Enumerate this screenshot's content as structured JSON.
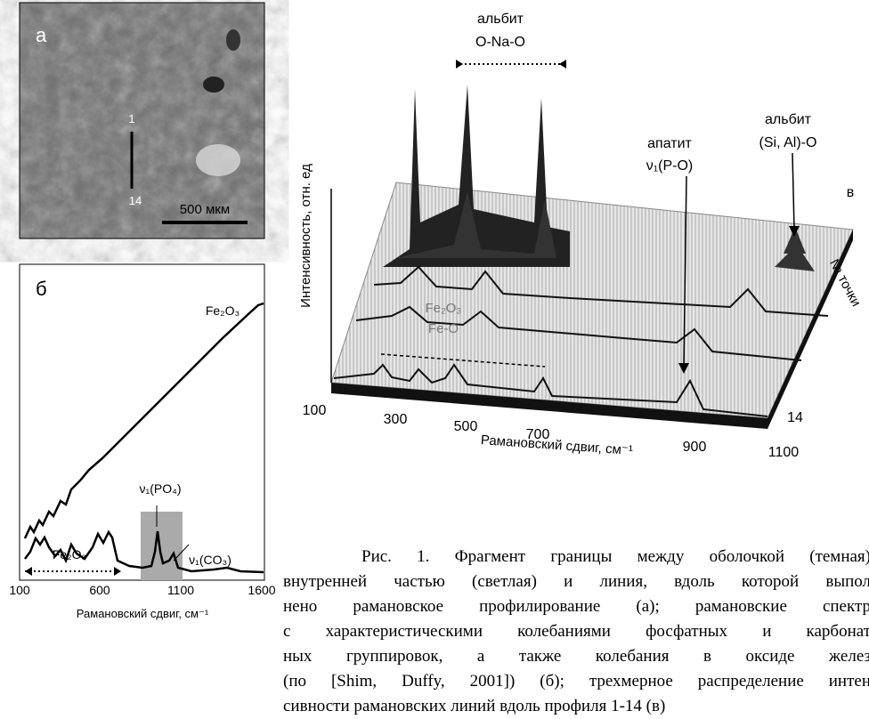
{
  "panel_a": {
    "label": "а",
    "point_start": "1",
    "point_end": "14",
    "scale_bar": "500 мкм"
  },
  "panel_b": {
    "label": "б",
    "curve_top_label": "Fe₂O₃",
    "range_label": "Fe₂O₃",
    "peak_po4": "ν₁(PO₄)",
    "peak_co3": "ν₁(CO₃)",
    "x_ticks": [
      "100",
      "600",
      "1100",
      "1600"
    ],
    "x_title": "Рамановский сдвиг, см⁻¹"
  },
  "panel_c": {
    "label": "в",
    "albite_1": "альбит",
    "albite_1_bond": "O-Na-O",
    "apatite": "апатит",
    "apatite_bond": "ν₁(P-O)",
    "albite_2": "альбит",
    "albite_2_bond": "(Si, Al)-O",
    "iron_oxide": "Fe₂O₃",
    "iron_oxide_bond": "Fe-O",
    "y_title": "Интенсивность, отн. ед",
    "z_title": "№ точки",
    "z_tick": "14",
    "x_ticks": [
      "100",
      "300",
      "500",
      "700",
      "900",
      "1100"
    ],
    "x_title": "Рамановский сдвиг, см⁻¹"
  },
  "caption": {
    "lines": [
      "Рис. 1. Фрагмент границы между оболочкой (темная)",
      "внутренней частью (светлая) и линия, вдоль которой выпол",
      "нено рамановское профилирование (а); рамановские спектр",
      "с характеристическими колебаниями фосфатных и карбонат",
      "ных группировок, а также колебания в оксиде желез",
      "(по [Shim, Duffy, 2001]) (б); трехмерное распределение интен",
      "сивности рамановских линий вдоль профиля 1-14 (в)"
    ]
  }
}
